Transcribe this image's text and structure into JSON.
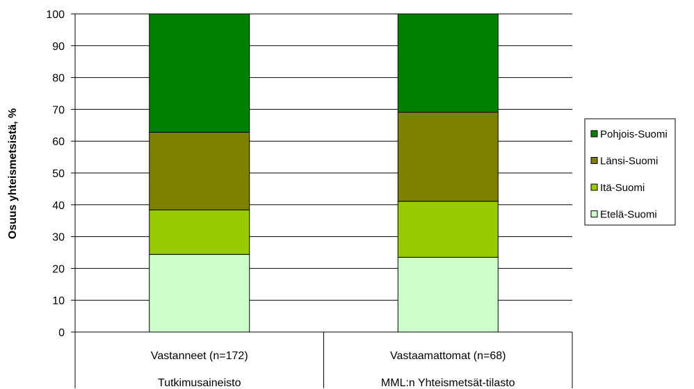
{
  "chart_data": {
    "type": "bar",
    "stacked": true,
    "ylabel": "Osuus yhteismetsistä, %",
    "ylim": [
      0,
      100
    ],
    "yticks": [
      0,
      10,
      20,
      30,
      40,
      50,
      60,
      70,
      80,
      90,
      100
    ],
    "categories": [
      {
        "label": "Vastanneet (n=172)",
        "group": "Tutkimusaineisto"
      },
      {
        "label": "Vastaamattomat (n=68)",
        "group": "MML:n Yhteismetsät-tilasto"
      }
    ],
    "series": [
      {
        "name": "Etelä-Suomi",
        "color": "#ccffcc",
        "values": [
          24.4,
          23.5
        ]
      },
      {
        "name": "Itä-Suomi",
        "color": "#99cc00",
        "values": [
          14.0,
          17.6
        ]
      },
      {
        "name": "Länsi-Suomi",
        "color": "#808000",
        "values": [
          24.4,
          28.0
        ]
      },
      {
        "name": "Pohjois-Suomi",
        "color": "#008000",
        "values": [
          37.2,
          30.9
        ]
      }
    ],
    "legend": {
      "position": "right",
      "order": [
        "Pohjois-Suomi",
        "Länsi-Suomi",
        "Itä-Suomi",
        "Etelä-Suomi"
      ]
    },
    "grid": true
  }
}
